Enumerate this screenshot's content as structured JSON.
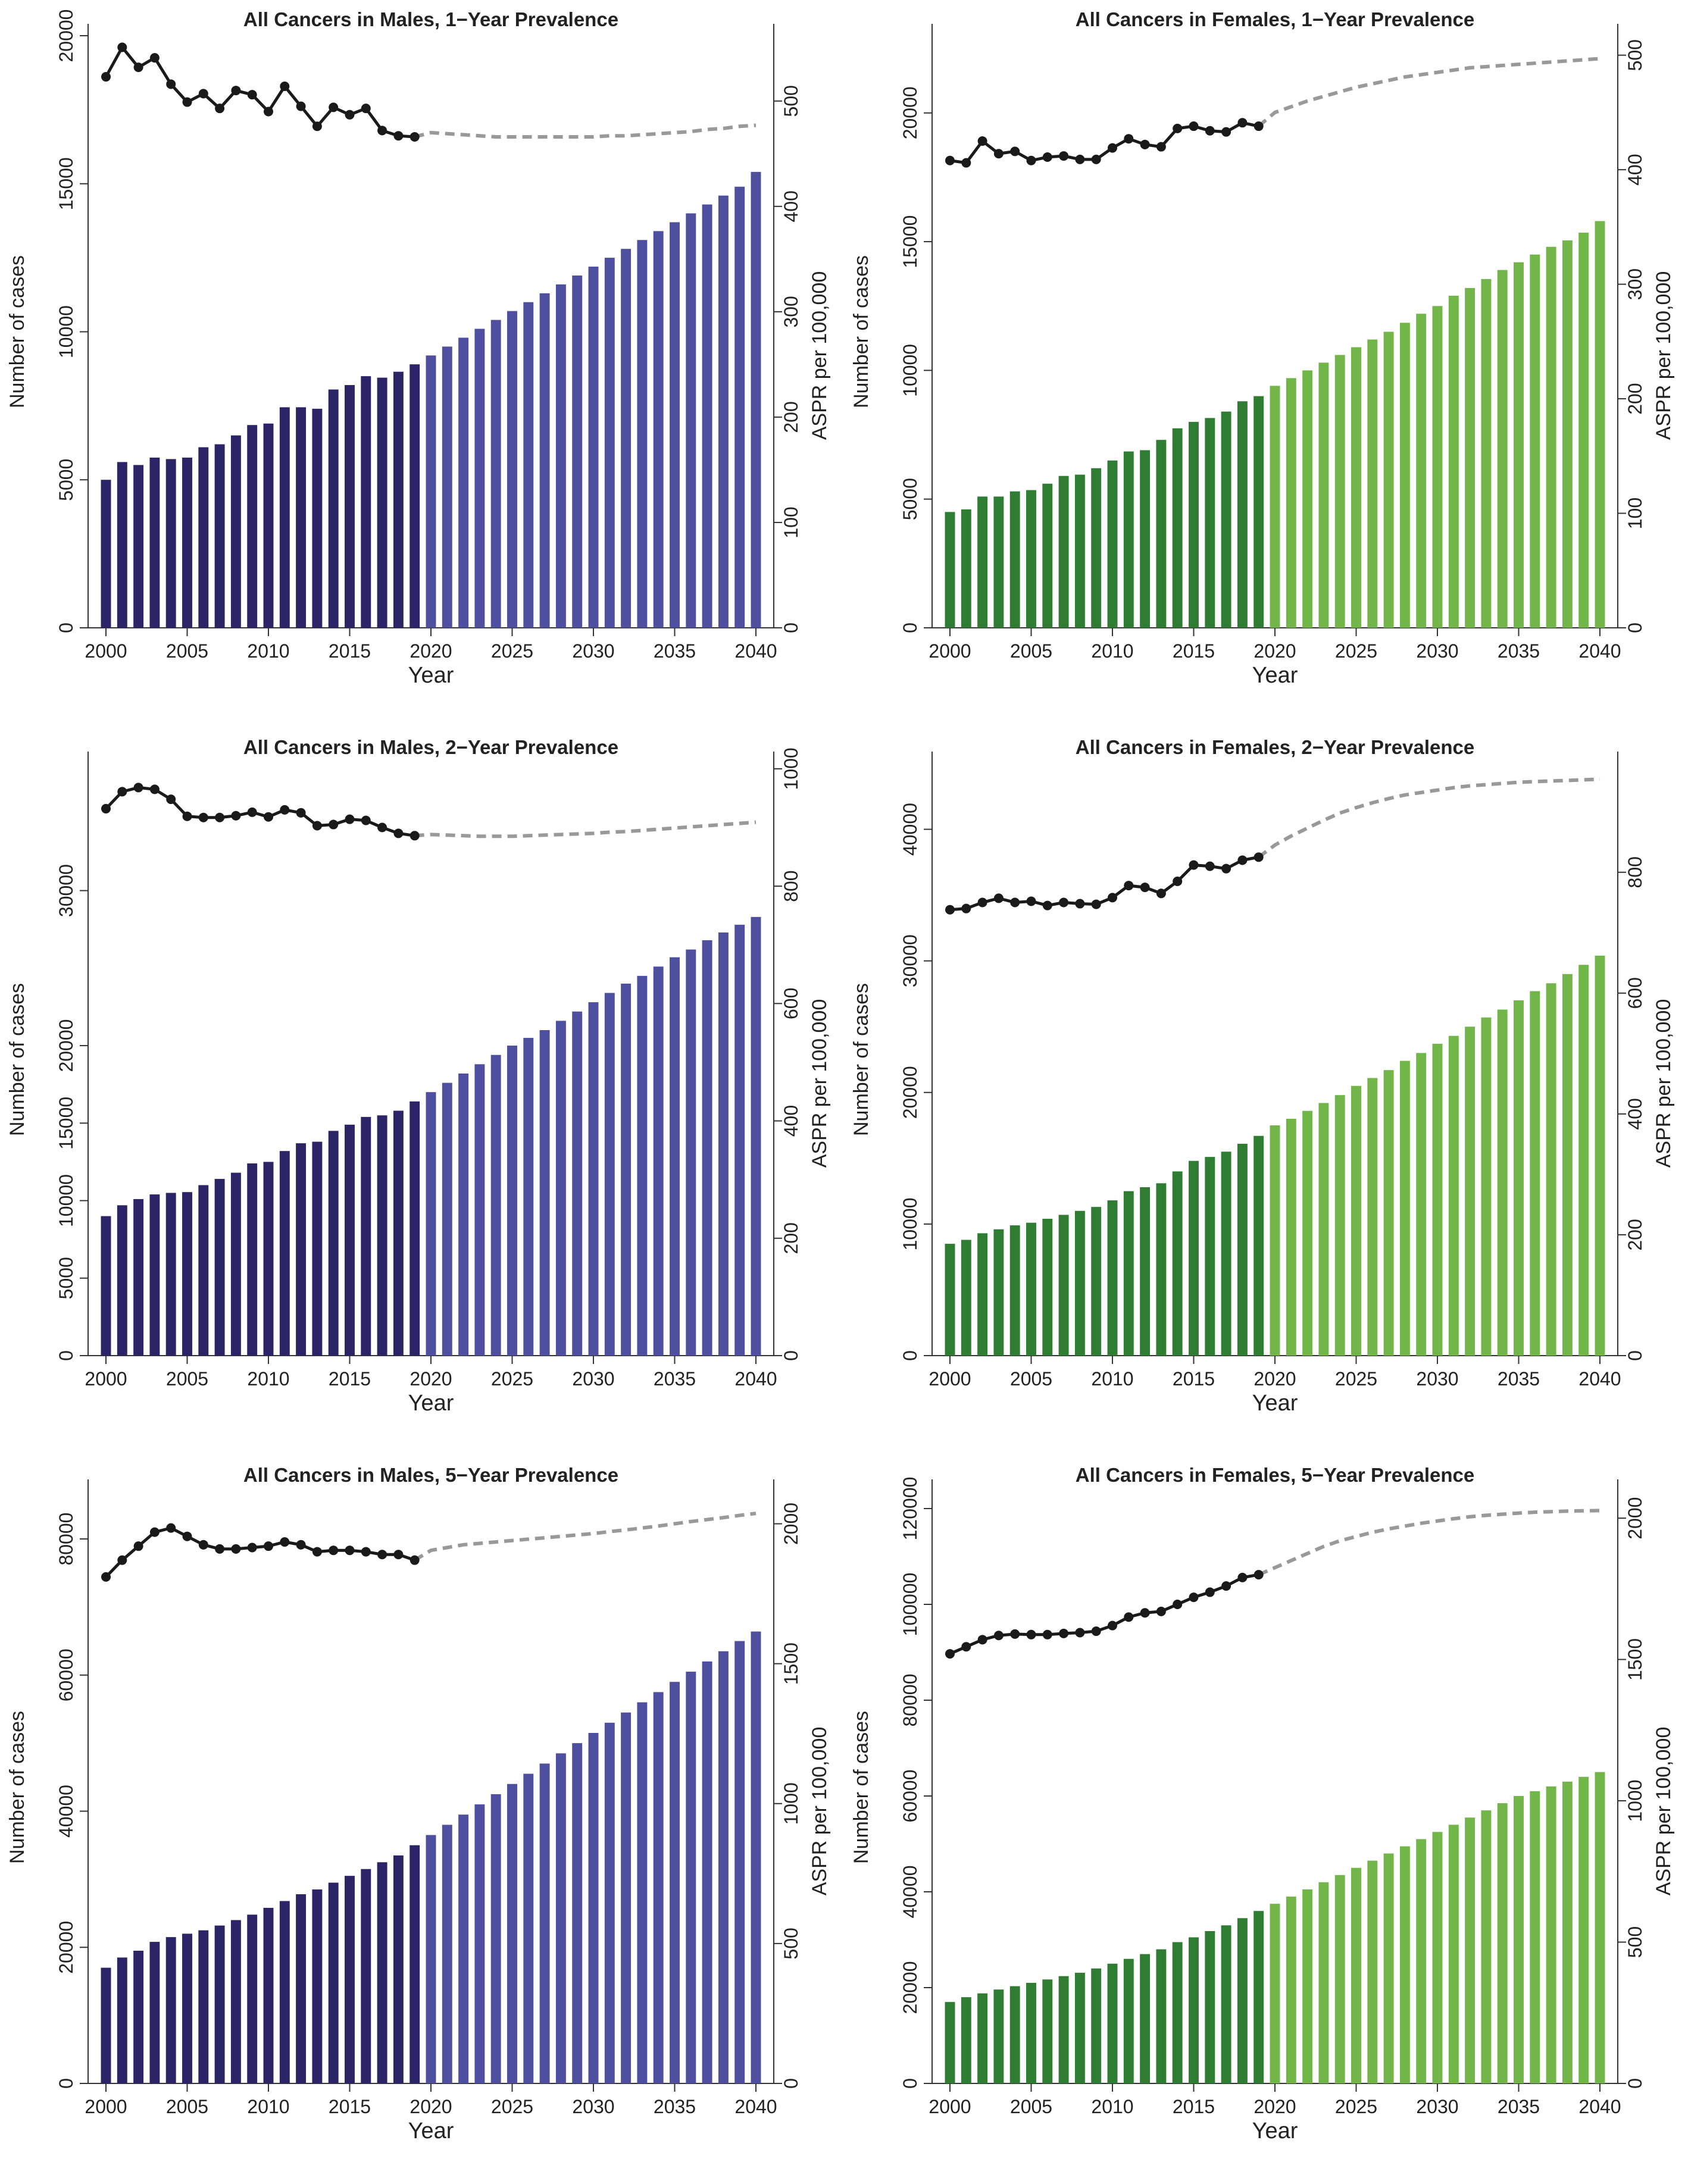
{
  "figure": {
    "colors": {
      "male_observed": "#2b2466",
      "male_projected": "#4e4f9e",
      "female_observed": "#2f7d32",
      "female_projected": "#72b64a",
      "line_observed": "#1a1a1a",
      "line_projected": "#999999"
    }
  },
  "chart_data": [
    {
      "type": "bar",
      "title": "All Cancers in Males, 1−Year Prevalence",
      "xlabel": "Year",
      "ylabel": "Number of cases",
      "y2label": "ASPR per 100,000",
      "xlim": [
        2000,
        2040
      ],
      "x_ticks": [
        2000,
        2005,
        2010,
        2015,
        2020,
        2025,
        2030,
        2035,
        2040
      ],
      "ylim": [
        0,
        20000
      ],
      "y_ticks": [
        0,
        5000,
        10000,
        15000,
        20000
      ],
      "y2lim": [
        0,
        562
      ],
      "y2_ticks": [
        0,
        100,
        200,
        300,
        400,
        500
      ],
      "observed_until": 2019,
      "palette": "male",
      "series": [
        {
          "name": "Number of cases",
          "axis": "left",
          "mark": "bar",
          "values": [
            5000,
            5600,
            5500,
            5750,
            5700,
            5750,
            6100,
            6200,
            6500,
            6850,
            6900,
            7450,
            7450,
            7400,
            8050,
            8200,
            8500,
            8450,
            8650,
            8900,
            9200,
            9500,
            9800,
            10100,
            10400,
            10700,
            11000,
            11300,
            11600,
            11900,
            12200,
            12500,
            12800,
            13100,
            13400,
            13700,
            14000,
            14300,
            14600,
            14900,
            15400
          ]
        },
        {
          "name": "ASPR per 100,000",
          "axis": "right",
          "mark": "line",
          "values": [
            523,
            551,
            532,
            541,
            516,
            499,
            507,
            493,
            510,
            506,
            490,
            514,
            495,
            476,
            494,
            487,
            493,
            472,
            467,
            466,
            470,
            469,
            468,
            467,
            466,
            466,
            466,
            466,
            466,
            466,
            466,
            467,
            467,
            468,
            469,
            470,
            471,
            473,
            474,
            476,
            477
          ]
        }
      ]
    },
    {
      "type": "bar",
      "title": "All Cancers in Females, 1−Year Prevalence",
      "xlabel": "Year",
      "ylabel": "Number of cases",
      "y2label": "ASPR per 100,000",
      "xlim": [
        2000,
        2040
      ],
      "x_ticks": [
        2000,
        2005,
        2010,
        2015,
        2020,
        2025,
        2030,
        2035,
        2040
      ],
      "ylim": [
        0,
        23000
      ],
      "y_ticks": [
        0,
        5000,
        10000,
        15000,
        20000
      ],
      "y2lim": [
        0,
        517
      ],
      "y2_ticks": [
        0,
        100,
        200,
        300,
        400,
        500
      ],
      "observed_until": 2019,
      "palette": "female",
      "series": [
        {
          "name": "Number of cases",
          "axis": "left",
          "mark": "bar",
          "values": [
            4500,
            4600,
            5100,
            5100,
            5300,
            5350,
            5600,
            5900,
            5950,
            6200,
            6500,
            6850,
            6900,
            7300,
            7750,
            8000,
            8150,
            8400,
            8800,
            9000,
            9400,
            9700,
            10000,
            10300,
            10600,
            10900,
            11200,
            11500,
            11850,
            12200,
            12500,
            12900,
            13200,
            13550,
            13900,
            14200,
            14500,
            14800,
            15050,
            15350,
            15800
          ]
        },
        {
          "name": "ASPR per 100,000",
          "axis": "right",
          "mark": "line",
          "values": [
            408,
            406,
            425,
            414,
            416,
            408,
            411,
            412,
            409,
            409,
            419,
            427,
            422,
            420,
            436,
            438,
            434,
            433,
            441,
            438,
            450,
            455,
            460,
            464,
            468,
            472,
            475,
            478,
            481,
            483,
            485,
            487,
            489,
            490,
            491,
            492,
            493,
            494,
            495,
            496,
            497
          ]
        }
      ]
    },
    {
      "type": "bar",
      "title": "All Cancers in Males, 2−Year Prevalence",
      "xlabel": "Year",
      "ylabel": "Number of cases",
      "y2label": "ASPR per 100,000",
      "xlim": [
        2000,
        2040
      ],
      "x_ticks": [
        2000,
        2005,
        2010,
        2015,
        2020,
        2025,
        2030,
        2035,
        2040
      ],
      "ylim": [
        0,
        38200
      ],
      "y_ticks": [
        0,
        5000,
        10000,
        15000,
        20000,
        30000
      ],
      "y2lim": [
        0,
        1009
      ],
      "y2_ticks": [
        0,
        200,
        400,
        600,
        800,
        1000
      ],
      "observed_until": 2019,
      "palette": "male",
      "series": [
        {
          "name": "Number of cases",
          "axis": "left",
          "mark": "bar",
          "values": [
            9000,
            9700,
            10100,
            10400,
            10500,
            10550,
            11000,
            11400,
            11800,
            12400,
            12500,
            13200,
            13700,
            13800,
            14500,
            14900,
            15400,
            15500,
            15800,
            16400,
            17000,
            17600,
            18200,
            18800,
            19400,
            20000,
            20500,
            21000,
            21600,
            22200,
            22800,
            23400,
            24000,
            24500,
            25100,
            25700,
            26200,
            26800,
            27300,
            27800,
            28300
          ]
        },
        {
          "name": "ASPR per 100,000",
          "axis": "right",
          "mark": "line",
          "values": [
            932,
            961,
            968,
            965,
            948,
            919,
            917,
            917,
            920,
            926,
            918,
            930,
            925,
            903,
            905,
            914,
            912,
            900,
            890,
            886,
            888,
            887,
            886,
            885,
            885,
            885,
            886,
            887,
            888,
            889,
            890,
            892,
            893,
            895,
            897,
            899,
            901,
            903,
            905,
            907,
            909
          ]
        }
      ]
    },
    {
      "type": "bar",
      "title": "All Cancers in Females, 2−Year Prevalence",
      "xlabel": "Year",
      "ylabel": "Number of cases",
      "y2label": "ASPR per 100,000",
      "xlim": [
        2000,
        2040
      ],
      "x_ticks": [
        2000,
        2005,
        2010,
        2015,
        2020,
        2025,
        2030,
        2035,
        2040
      ],
      "ylim": [
        0,
        45000
      ],
      "y_ticks": [
        0,
        10000,
        20000,
        30000,
        40000
      ],
      "y2lim": [
        0,
        980
      ],
      "y2_ticks": [
        0,
        200,
        400,
        600,
        800
      ],
      "observed_until": 2019,
      "palette": "female",
      "series": [
        {
          "name": "Number of cases",
          "axis": "left",
          "mark": "bar",
          "values": [
            8500,
            8800,
            9300,
            9600,
            9900,
            10100,
            10400,
            10700,
            11000,
            11300,
            11800,
            12500,
            12800,
            13100,
            14000,
            14800,
            15100,
            15500,
            16100,
            16700,
            17500,
            18000,
            18600,
            19200,
            19800,
            20500,
            21100,
            21700,
            22400,
            23000,
            23700,
            24300,
            25000,
            25700,
            26300,
            27000,
            27700,
            28300,
            29000,
            29700,
            30400
          ]
        },
        {
          "name": "ASPR per 100,000",
          "axis": "right",
          "mark": "line",
          "values": [
            738,
            740,
            750,
            757,
            750,
            752,
            745,
            750,
            748,
            747,
            758,
            778,
            775,
            765,
            785,
            812,
            810,
            806,
            820,
            825,
            845,
            860,
            873,
            886,
            898,
            907,
            915,
            922,
            928,
            932,
            936,
            940,
            943,
            945,
            947,
            949,
            950,
            951,
            952,
            953,
            954
          ]
        }
      ]
    },
    {
      "type": "bar",
      "title": "All Cancers in Males, 5−Year Prevalence",
      "xlabel": "Year",
      "ylabel": "Number of cases",
      "y2label": "ASPR per 100,000",
      "xlim": [
        2000,
        2040
      ],
      "x_ticks": [
        2000,
        2005,
        2010,
        2015,
        2020,
        2025,
        2030,
        2035,
        2040
      ],
      "ylim": [
        0,
        87000
      ],
      "y_ticks": [
        0,
        20000,
        40000,
        60000,
        80000
      ],
      "y2lim": [
        0,
        2116
      ],
      "y2_ticks": [
        0,
        500,
        1000,
        1500,
        2000
      ],
      "observed_until": 2019,
      "palette": "male",
      "series": [
        {
          "name": "Number of cases",
          "axis": "left",
          "mark": "bar",
          "values": [
            17000,
            18500,
            19500,
            20800,
            21500,
            22000,
            22500,
            23200,
            24000,
            24800,
            25800,
            26800,
            27800,
            28500,
            29500,
            30500,
            31500,
            32500,
            33500,
            35000,
            36500,
            38000,
            39500,
            41000,
            42500,
            44000,
            45500,
            47000,
            48500,
            50000,
            51500,
            53000,
            54500,
            56000,
            57500,
            59000,
            60500,
            62000,
            63500,
            65000,
            66400
          ]
        },
        {
          "name": "ASPR per 100,000",
          "axis": "right",
          "mark": "line",
          "values": [
            1810,
            1870,
            1920,
            1970,
            1985,
            1955,
            1925,
            1910,
            1910,
            1915,
            1920,
            1935,
            1925,
            1900,
            1905,
            1905,
            1900,
            1890,
            1890,
            1870,
            1905,
            1915,
            1925,
            1930,
            1935,
            1940,
            1945,
            1950,
            1955,
            1960,
            1965,
            1972,
            1978,
            1985,
            1992,
            2000,
            2008,
            2015,
            2022,
            2030,
            2037
          ]
        }
      ]
    },
    {
      "type": "bar",
      "title": "All Cancers in Females, 5−Year Prevalence",
      "xlabel": "Year",
      "ylabel": "Number of cases",
      "y2label": "ASPR per 100,000",
      "xlim": [
        2000,
        2040
      ],
      "x_ticks": [
        2000,
        2005,
        2010,
        2015,
        2020,
        2025,
        2030,
        2035,
        2040
      ],
      "ylim": [
        0,
        123600
      ],
      "y_ticks": [
        0,
        20000,
        40000,
        60000,
        80000,
        100000,
        120000
      ],
      "y2lim": [
        0,
        2095
      ],
      "y2_ticks": [
        0,
        500,
        1000,
        1500,
        2000
      ],
      "observed_until": 2019,
      "palette": "female",
      "series": [
        {
          "name": "Number of cases",
          "axis": "left",
          "mark": "bar",
          "values": [
            17000,
            18000,
            18800,
            19600,
            20300,
            21000,
            21700,
            22400,
            23100,
            24000,
            25000,
            26000,
            27000,
            28000,
            29500,
            30500,
            31800,
            33000,
            34500,
            36000,
            37500,
            39000,
            40500,
            42000,
            43500,
            45000,
            46500,
            48000,
            49500,
            51000,
            52500,
            54000,
            55500,
            57000,
            58500,
            60000,
            61000,
            62000,
            63000,
            64000,
            65000
          ]
        },
        {
          "name": "ASPR per 100,000",
          "axis": "right",
          "mark": "line",
          "values": [
            1520,
            1545,
            1570,
            1585,
            1590,
            1588,
            1588,
            1592,
            1595,
            1600,
            1620,
            1650,
            1665,
            1670,
            1695,
            1720,
            1738,
            1760,
            1790,
            1800,
            1825,
            1850,
            1875,
            1900,
            1920,
            1935,
            1950,
            1962,
            1972,
            1982,
            1990,
            1998,
            2005,
            2010,
            2014,
            2018,
            2021,
            2023,
            2025,
            2026,
            2027
          ]
        }
      ]
    }
  ]
}
